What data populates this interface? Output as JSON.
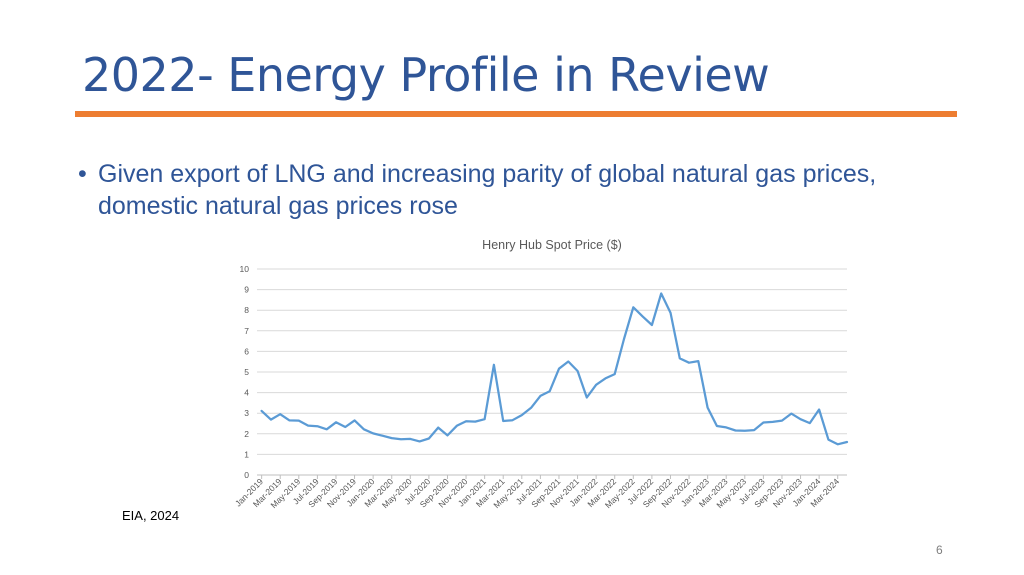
{
  "slide": {
    "title": "2022- Energy Profile in Review",
    "bullet_marker": "•",
    "bullet_text": "Given export of LNG and increasing parity of global natural gas prices, domestic natural gas prices rose",
    "source": "EIA, 2024",
    "page_number": "6"
  },
  "colors": {
    "title": "#2f5597",
    "accent_rule": "#ed7d31",
    "series_line": "#5b9bd5",
    "gridline": "#d9d9d9"
  },
  "chart_data": {
    "type": "line",
    "title": "Henry Hub Spot Price ($)",
    "xlabel": "",
    "ylabel": "",
    "ylim": [
      0,
      10
    ],
    "yticks": [
      0,
      1,
      2,
      3,
      4,
      5,
      6,
      7,
      8,
      9,
      10
    ],
    "grid": true,
    "legend": "none",
    "categories": [
      "Jan-2019",
      "Feb-2019",
      "Mar-2019",
      "Apr-2019",
      "May-2019",
      "Jun-2019",
      "Jul-2019",
      "Aug-2019",
      "Sep-2019",
      "Oct-2019",
      "Nov-2019",
      "Dec-2019",
      "Jan-2020",
      "Feb-2020",
      "Mar-2020",
      "Apr-2020",
      "May-2020",
      "Jun-2020",
      "Jul-2020",
      "Aug-2020",
      "Sep-2020",
      "Oct-2020",
      "Nov-2020",
      "Dec-2020",
      "Jan-2021",
      "Feb-2021",
      "Mar-2021",
      "Apr-2021",
      "May-2021",
      "Jun-2021",
      "Jul-2021",
      "Aug-2021",
      "Sep-2021",
      "Oct-2021",
      "Nov-2021",
      "Dec-2021",
      "Jan-2022",
      "Feb-2022",
      "Mar-2022",
      "Apr-2022",
      "May-2022",
      "Jun-2022",
      "Jul-2022",
      "Aug-2022",
      "Sep-2022",
      "Oct-2022",
      "Nov-2022",
      "Dec-2022",
      "Jan-2023",
      "Feb-2023",
      "Mar-2023",
      "Apr-2023",
      "May-2023",
      "Jun-2023",
      "Jul-2023",
      "Aug-2023",
      "Sep-2023",
      "Oct-2023",
      "Nov-2023",
      "Dec-2023",
      "Jan-2024",
      "Feb-2024",
      "Mar-2024",
      "Apr-2024"
    ],
    "tick_labels": [
      "Jan-2019",
      "Mar-2019",
      "May-2019",
      "Jul-2019",
      "Sep-2019",
      "Nov-2019",
      "Jan-2020",
      "Mar-2020",
      "May-2020",
      "Jul-2020",
      "Sep-2020",
      "Nov-2020",
      "Jan-2021",
      "Mar-2021",
      "May-2021",
      "Jul-2021",
      "Sep-2021",
      "Nov-2021",
      "Jan-2022",
      "Mar-2022",
      "May-2022",
      "Jul-2022",
      "Sep-2022",
      "Nov-2022",
      "Jan-2023",
      "Mar-2023",
      "May-2023",
      "Jul-2023",
      "Sep-2023",
      "Nov-2023",
      "Jan-2024",
      "Mar-2024"
    ],
    "series": [
      {
        "values": [
          3.11,
          2.69,
          2.95,
          2.65,
          2.64,
          2.4,
          2.37,
          2.22,
          2.56,
          2.33,
          2.65,
          2.22,
          2.02,
          1.91,
          1.79,
          1.74,
          1.75,
          1.63,
          1.77,
          2.3,
          1.92,
          2.39,
          2.61,
          2.59,
          2.71,
          5.35,
          2.62,
          2.66,
          2.91,
          3.26,
          3.84,
          4.07,
          5.16,
          5.51,
          5.05,
          3.76,
          4.38,
          4.69,
          4.9,
          6.6,
          8.14,
          7.7,
          7.28,
          8.81,
          7.88,
          5.66,
          5.45,
          5.53,
          3.27,
          2.38,
          2.31,
          2.16,
          2.15,
          2.18,
          2.55,
          2.58,
          2.64,
          2.98,
          2.71,
          2.52,
          3.18,
          1.72,
          1.49,
          1.6
        ]
      }
    ]
  }
}
